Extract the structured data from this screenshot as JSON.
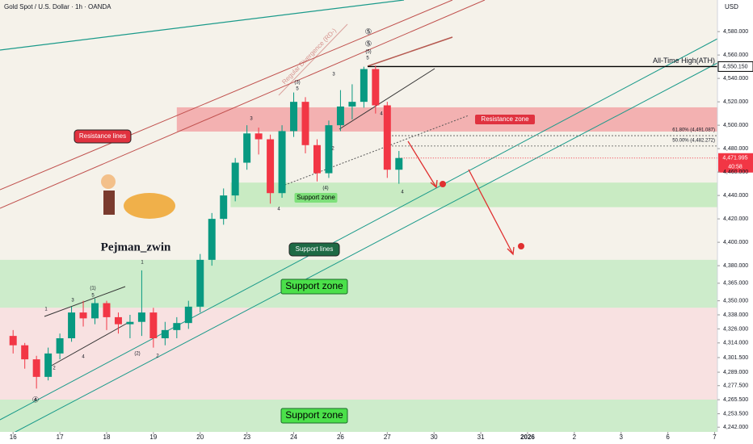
{
  "chart_data": {
    "type": "candlestick",
    "title": "Gold Spot / U.S. Dollar · 1h · OANDA",
    "currency": "USD",
    "author": "Pejman_zwin",
    "x": [
      0,
      0.25,
      0.5,
      0.75,
      1,
      1.25,
      1.5,
      1.75,
      2,
      2.25,
      2.5,
      2.75,
      3,
      3.25,
      3.5,
      3.75,
      4,
      4.25,
      4.5,
      4.75,
      5,
      5.25,
      5.5,
      5.75,
      6,
      6.25,
      6.5,
      6.75,
      7,
      7.25,
      7.5,
      7.75,
      8,
      8.25
    ],
    "open": [
      4320,
      4312,
      4300,
      4285,
      4305,
      4318,
      4340,
      4335,
      4348,
      4336,
      4330,
      4332,
      4340,
      4318,
      4325,
      4331,
      4345,
      4385,
      4420,
      4440,
      4468,
      4493,
      4488,
      4442,
      4495,
      4520,
      4483,
      4459,
      4500,
      4516,
      4520,
      4548,
      4517,
      4462
    ],
    "high": [
      4325,
      4314,
      4303,
      4310,
      4322,
      4345,
      4350,
      4352,
      4350,
      4340,
      4338,
      4376,
      4344,
      4332,
      4336,
      4350,
      4390,
      4425,
      4446,
      4472,
      4500,
      4498,
      4492,
      4500,
      4528,
      4524,
      4488,
      4504,
      4530,
      4535,
      4550,
      4551,
      4520,
      4478
    ],
    "low": [
      4305,
      4292,
      4275,
      4282,
      4300,
      4315,
      4328,
      4330,
      4325,
      4322,
      4318,
      4320,
      4310,
      4312,
      4318,
      4326,
      4340,
      4380,
      4415,
      4435,
      4462,
      4475,
      4433,
      4438,
      4490,
      4476,
      4452,
      4455,
      4495,
      4505,
      4515,
      4510,
      4455,
      4450
    ],
    "close": [
      4312,
      4300,
      4285,
      4305,
      4318,
      4340,
      4335,
      4348,
      4336,
      4330,
      4332,
      4340,
      4318,
      4325,
      4331,
      4345,
      4385,
      4420,
      4440,
      4468,
      4493,
      4488,
      4442,
      4495,
      4520,
      4483,
      4459,
      4500,
      4516,
      4520,
      4548,
      4517,
      4462,
      4472
    ],
    "up_color": "#089981",
    "down_color": "#f23645",
    "xlim": [
      -0.28,
      15.06
    ],
    "ylim": [
      4238,
      4607
    ],
    "xticks": [
      {
        "value": 0,
        "label": "16"
      },
      {
        "value": 1,
        "label": "17"
      },
      {
        "value": 2,
        "label": "18"
      },
      {
        "value": 3,
        "label": "19"
      },
      {
        "value": 4,
        "label": "20"
      },
      {
        "value": 5,
        "label": "23"
      },
      {
        "value": 6,
        "label": "24"
      },
      {
        "value": 7,
        "label": "26"
      },
      {
        "value": 8,
        "label": "27"
      },
      {
        "value": 9,
        "label": "30"
      },
      {
        "value": 10,
        "label": "31"
      },
      {
        "value": 11,
        "label": "2026"
      },
      {
        "value": 12,
        "label": "2"
      },
      {
        "value": 13,
        "label": "3"
      },
      {
        "value": 14,
        "label": "6"
      },
      {
        "value": 15,
        "label": "7"
      }
    ],
    "yticks": [
      {
        "value": 4580,
        "label": "4,580.000"
      },
      {
        "value": 4560,
        "label": "4,560.000"
      },
      {
        "value": 4540,
        "label": "4,540.000"
      },
      {
        "value": 4520,
        "label": "4,520.000"
      },
      {
        "value": 4500,
        "label": "4,500.000"
      },
      {
        "value": 4480,
        "label": "4,480.000"
      },
      {
        "value": 4460,
        "label": "4,460.000"
      },
      {
        "value": 4440,
        "label": "4,440.000"
      },
      {
        "value": 4420,
        "label": "4,420.000"
      },
      {
        "value": 4400,
        "label": "4,400.000"
      },
      {
        "value": 4380,
        "label": "4,380.000"
      },
      {
        "value": 4365,
        "label": "4,365.000"
      },
      {
        "value": 4350,
        "label": "4,350.000"
      },
      {
        "value": 4338,
        "label": "4,338.000"
      },
      {
        "value": 4326,
        "label": "4,326.000"
      },
      {
        "value": 4314,
        "label": "4,314.000"
      },
      {
        "value": 4301.5,
        "label": "4,301.500"
      },
      {
        "value": 4289,
        "label": "4,289.000"
      },
      {
        "value": 4277.5,
        "label": "4,277.500"
      },
      {
        "value": 4265.5,
        "label": "4,265.500"
      },
      {
        "value": 4253.5,
        "label": "4,253.500"
      },
      {
        "value": 4242,
        "label": "4,242.000"
      }
    ],
    "zones": [
      {
        "name": "Resistance zone",
        "from": 4494.6,
        "to": 4515.3,
        "start": 3.5,
        "color": "#f3b1b1"
      },
      {
        "name": "Support zone",
        "from": 4430,
        "to": 4451,
        "start": 4.65,
        "color": "#c9ebc3"
      },
      {
        "name": "Support zone",
        "from": 4344,
        "to": 4385,
        "color": "#cdeccb"
      },
      {
        "name": null,
        "from": 4265.6,
        "to": 4344,
        "color": "#f8e1e1"
      },
      {
        "name": "Support zone",
        "from": 4238,
        "to": 4265.6,
        "color": "#cdeccb"
      }
    ],
    "levels": [
      {
        "value": 4550.15,
        "label": "All-Time High(ATH)",
        "tag": "4,550.150"
      },
      {
        "value": 4491.087,
        "label": "61.80% (4,491.087)"
      },
      {
        "value": 4482.272,
        "label": "50.00% (4,482.272)"
      }
    ],
    "last_price": {
      "value": 4471.995,
      "label": "4,471.995",
      "countdown": "40:58"
    },
    "annotations": [
      "Resistance lines",
      "Support lines",
      "Regular Divergence (RD-)"
    ],
    "wave_labels": [
      "1",
      "2",
      "3",
      "4",
      "(1)",
      "5",
      "(2)",
      "2",
      "1",
      "3",
      "4",
      "(3)",
      "5",
      "2",
      "(4)",
      "3",
      "4",
      "5",
      "(5)",
      "⑤",
      "⑤",
      "④",
      "4"
    ]
  }
}
